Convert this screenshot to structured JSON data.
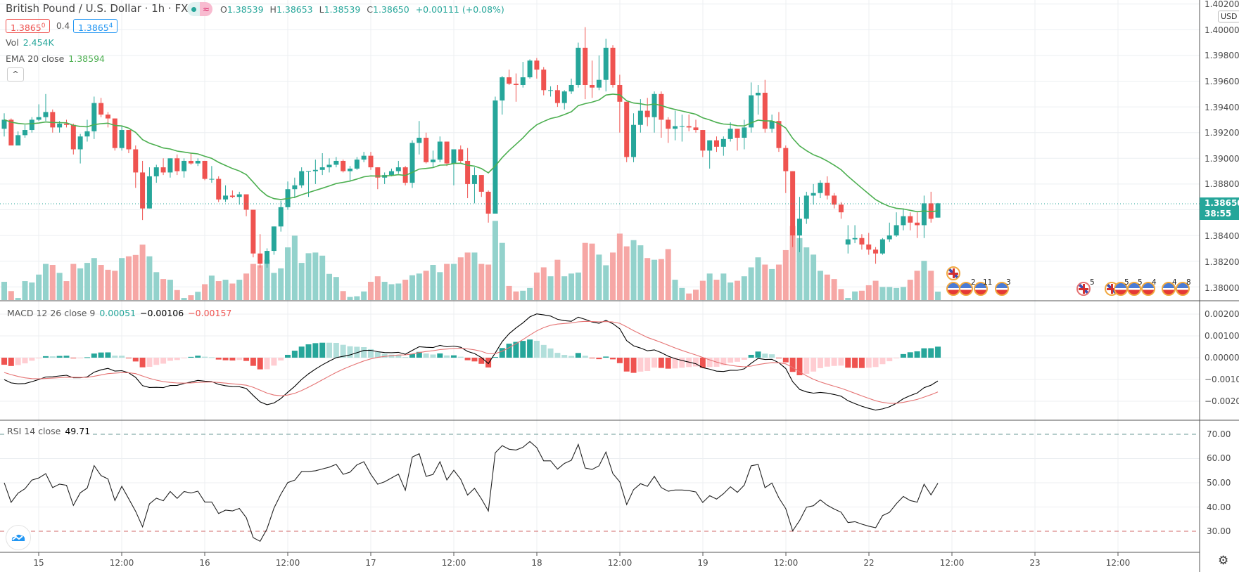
{
  "header": {
    "title": "British Pound / U.S. Dollar · 1h · FXCM",
    "signal_icon": "≈",
    "ohlc": {
      "o_label": "O",
      "o": "1.38539",
      "h_label": "H",
      "h": "1.38653",
      "l_label": "L",
      "l": "1.38539",
      "c_label": "C",
      "c": "1.38650",
      "change": "+0.00111 (+0.08%)"
    },
    "bid_main": "1.3865",
    "bid_pip": "0",
    "spread": "0.4",
    "ask_main": "1.3865",
    "ask_pip": "4"
  },
  "legend": {
    "vol_label": "Vol",
    "vol_value": "2.454K",
    "ema_label": "EMA 20 close",
    "ema_value": "1.38594",
    "collapse_icon": "^"
  },
  "macd_legend": {
    "label": "MACD 12 26 close 9",
    "hist": "0.00051",
    "macd": "−0.00106",
    "signal": "−0.00157"
  },
  "rsi_legend": {
    "label": "RSI 14 close",
    "value": "49.71"
  },
  "price_axis": {
    "currency": "USD",
    "ticks": [
      "1.40200",
      "1.40000",
      "1.39800",
      "1.39600",
      "1.39400",
      "1.39200",
      "1.39000",
      "1.38800",
      "1.38600",
      "1.38400",
      "1.38200",
      "1.38000"
    ],
    "last_price": "1.38650",
    "countdown": "38:55"
  },
  "macd_axis": {
    "ticks": [
      "0.00200",
      "0.00100",
      "0.00000",
      "−0.00100",
      "−0.00200"
    ]
  },
  "rsi_axis": {
    "ticks": [
      "70.00",
      "60.00",
      "50.00",
      "40.00",
      "30.00"
    ]
  },
  "time_axis": {
    "ticks": [
      "15",
      "12:00",
      "16",
      "12:00",
      "17",
      "12:00",
      "18",
      "12:00",
      "19",
      "12:00",
      "22",
      "12:00",
      "23",
      "12:00"
    ]
  },
  "events": [
    {
      "flag": "uk",
      "count": ""
    },
    {
      "flag": "us",
      "count": ""
    },
    {
      "flag": "us",
      "count": "2"
    },
    {
      "flag": "us",
      "count": "11"
    },
    {
      "flag": "us",
      "count": "3"
    },
    {
      "flag": "uk",
      "count": "5"
    },
    {
      "flag": "uk",
      "count": ""
    },
    {
      "flag": "us",
      "count": "5"
    },
    {
      "flag": "us",
      "count": "5"
    },
    {
      "flag": "us",
      "count": "4"
    },
    {
      "flag": "us",
      "count": "4"
    },
    {
      "flag": "us",
      "count": "8"
    }
  ],
  "colors": {
    "up": "#26a69a",
    "down": "#ef5350",
    "up_vol": "#93d2cc",
    "down_vol": "#f6a7a5",
    "ema": "#4caf50",
    "macd": "#000000",
    "signal": "#e57373",
    "hist_up_strong": "#26a69a",
    "hist_up_weak": "#b2dfdb",
    "hist_down_strong": "#ef5350",
    "hist_down_weak": "#ffcdd2"
  },
  "chart_data": {
    "type": "candlestick",
    "symbol": "GBPUSD",
    "interval": "1h",
    "price_range": [
      1.3795,
      1.4024
    ],
    "indicators": [
      "Volume",
      "EMA 20 close",
      "MACD 12 26 close 9",
      "RSI 14 close"
    ],
    "rsi_levels": [
      70,
      30
    ],
    "candles_ohlc": [
      [
        1.3923,
        1.3935,
        1.3917,
        1.393
      ],
      [
        1.393,
        1.3931,
        1.391,
        1.391
      ],
      [
        1.391,
        1.3921,
        1.391,
        1.3918
      ],
      [
        1.3918,
        1.3926,
        1.3916,
        1.3922
      ],
      [
        1.3922,
        1.3932,
        1.392,
        1.393
      ],
      [
        1.393,
        1.3942,
        1.3929,
        1.3932
      ],
      [
        1.3932,
        1.395,
        1.3929,
        1.3936
      ],
      [
        1.3936,
        1.3938,
        1.392,
        1.3924
      ],
      [
        1.3924,
        1.3929,
        1.392,
        1.3927
      ],
      [
        1.3927,
        1.393,
        1.3924,
        1.3926
      ],
      [
        1.3926,
        1.3927,
        1.3903,
        1.3907
      ],
      [
        1.3907,
        1.3919,
        1.3896,
        1.3917
      ],
      [
        1.3917,
        1.393,
        1.3913,
        1.3921
      ],
      [
        1.3921,
        1.3948,
        1.3915,
        1.3943
      ],
      [
        1.3943,
        1.3947,
        1.3932,
        1.3934
      ],
      [
        1.3934,
        1.3936,
        1.3924,
        1.3931
      ],
      [
        1.3931,
        1.3931,
        1.3906,
        1.3908
      ],
      [
        1.3908,
        1.3925,
        1.3906,
        1.3922
      ],
      [
        1.3922,
        1.3922,
        1.3904,
        1.3907
      ],
      [
        1.3907,
        1.391,
        1.3877,
        1.3889
      ],
      [
        1.3889,
        1.3898,
        1.3852,
        1.3861
      ],
      [
        1.3861,
        1.3893,
        1.3861,
        1.3886
      ],
      [
        1.3886,
        1.3895,
        1.3881,
        1.3893
      ],
      [
        1.3893,
        1.39,
        1.3887,
        1.3889
      ],
      [
        1.3889,
        1.39,
        1.3885,
        1.39
      ],
      [
        1.39,
        1.3903,
        1.3887,
        1.389
      ],
      [
        1.389,
        1.39,
        1.3885,
        1.3898
      ],
      [
        1.3898,
        1.3904,
        1.3895,
        1.3896
      ],
      [
        1.3896,
        1.39,
        1.3894,
        1.3898
      ],
      [
        1.3898,
        1.3898,
        1.3883,
        1.3884
      ],
      [
        1.3884,
        1.3894,
        1.3881,
        1.3884
      ],
      [
        1.3884,
        1.3886,
        1.3866,
        1.3868
      ],
      [
        1.3868,
        1.3879,
        1.3866,
        1.3871
      ],
      [
        1.3871,
        1.3875,
        1.3869,
        1.387
      ],
      [
        1.387,
        1.3874,
        1.3864,
        1.3872
      ],
      [
        1.3872,
        1.3872,
        1.3855,
        1.386
      ],
      [
        1.386,
        1.386,
        1.3823,
        1.3826
      ],
      [
        1.3826,
        1.3841,
        1.3815,
        1.3818
      ],
      [
        1.3818,
        1.383,
        1.3815,
        1.3828
      ],
      [
        1.3828,
        1.3847,
        1.3825,
        1.3847
      ],
      [
        1.3847,
        1.3867,
        1.3843,
        1.3862
      ],
      [
        1.3862,
        1.3882,
        1.386,
        1.3876
      ],
      [
        1.3876,
        1.3885,
        1.3869,
        1.3879
      ],
      [
        1.3879,
        1.3893,
        1.3877,
        1.389
      ],
      [
        1.389,
        1.389,
        1.387,
        1.389
      ],
      [
        1.389,
        1.3899,
        1.388,
        1.3891
      ],
      [
        1.3891,
        1.3904,
        1.3887,
        1.3893
      ],
      [
        1.3893,
        1.39,
        1.3889,
        1.3895
      ],
      [
        1.3895,
        1.3901,
        1.3893,
        1.3898
      ],
      [
        1.3898,
        1.3899,
        1.3889,
        1.389
      ],
      [
        1.389,
        1.3894,
        1.3882,
        1.3892
      ],
      [
        1.3892,
        1.3901,
        1.3891,
        1.3899
      ],
      [
        1.3899,
        1.3905,
        1.3897,
        1.3902
      ],
      [
        1.3902,
        1.3905,
        1.3891,
        1.3893
      ],
      [
        1.3893,
        1.3893,
        1.3876,
        1.3885
      ],
      [
        1.3885,
        1.3889,
        1.388,
        1.3887
      ],
      [
        1.3887,
        1.3892,
        1.3886,
        1.389
      ],
      [
        1.389,
        1.3898,
        1.3888,
        1.3893
      ],
      [
        1.3893,
        1.3894,
        1.3879,
        1.3881
      ],
      [
        1.3881,
        1.3914,
        1.3877,
        1.3912
      ],
      [
        1.3912,
        1.3929,
        1.3903,
        1.3916
      ],
      [
        1.3916,
        1.392,
        1.3896,
        1.3897
      ],
      [
        1.3897,
        1.3906,
        1.3893,
        1.3899
      ],
      [
        1.3899,
        1.3917,
        1.3897,
        1.3913
      ],
      [
        1.3913,
        1.3913,
        1.3894,
        1.3896
      ],
      [
        1.3896,
        1.3907,
        1.3879,
        1.3907
      ],
      [
        1.3907,
        1.391,
        1.3896,
        1.3898
      ],
      [
        1.3898,
        1.3908,
        1.3869,
        1.388
      ],
      [
        1.388,
        1.3893,
        1.3865,
        1.3887
      ],
      [
        1.3887,
        1.3887,
        1.387,
        1.3874
      ],
      [
        1.3874,
        1.3875,
        1.385,
        1.3857
      ],
      [
        1.3857,
        1.3948,
        1.3857,
        1.3945
      ],
      [
        1.3945,
        1.3964,
        1.3934,
        1.3963
      ],
      [
        1.3963,
        1.3969,
        1.3957,
        1.3958
      ],
      [
        1.3958,
        1.3966,
        1.3944,
        1.3957
      ],
      [
        1.3957,
        1.3975,
        1.3955,
        1.3963
      ],
      [
        1.3963,
        1.3977,
        1.3962,
        1.3976
      ],
      [
        1.3976,
        1.3978,
        1.3962,
        1.3969
      ],
      [
        1.3969,
        1.3971,
        1.3949,
        1.3953
      ],
      [
        1.3953,
        1.3956,
        1.3948,
        1.3953
      ],
      [
        1.3953,
        1.3957,
        1.394,
        1.3943
      ],
      [
        1.3943,
        1.3953,
        1.3938,
        1.3952
      ],
      [
        1.3952,
        1.3962,
        1.395,
        1.3957
      ],
      [
        1.3957,
        1.399,
        1.3955,
        1.3986
      ],
      [
        1.3986,
        1.4002,
        1.3946,
        1.3957
      ],
      [
        1.3957,
        1.3976,
        1.3947,
        1.3955
      ],
      [
        1.3955,
        1.398,
        1.3953,
        1.3961
      ],
      [
        1.3961,
        1.3993,
        1.3952,
        1.3986
      ],
      [
        1.3986,
        1.3988,
        1.3955,
        1.3957
      ],
      [
        1.3957,
        1.3965,
        1.392,
        1.3944
      ],
      [
        1.3944,
        1.3944,
        1.3897,
        1.3901
      ],
      [
        1.3901,
        1.3935,
        1.3897,
        1.3926
      ],
      [
        1.3926,
        1.3946,
        1.392,
        1.3937
      ],
      [
        1.3937,
        1.3947,
        1.3925,
        1.3932
      ],
      [
        1.3932,
        1.3952,
        1.392,
        1.395
      ],
      [
        1.395,
        1.3952,
        1.3916,
        1.393
      ],
      [
        1.393,
        1.3932,
        1.3912,
        1.3923
      ],
      [
        1.3923,
        1.3937,
        1.3914,
        1.3925
      ],
      [
        1.3925,
        1.3934,
        1.3913,
        1.3925
      ],
      [
        1.3925,
        1.3934,
        1.3921,
        1.3924
      ],
      [
        1.3924,
        1.393,
        1.392,
        1.3922
      ],
      [
        1.3922,
        1.3922,
        1.3901,
        1.3906
      ],
      [
        1.3906,
        1.3914,
        1.3892,
        1.3914
      ],
      [
        1.3914,
        1.3917,
        1.3905,
        1.3909
      ],
      [
        1.3909,
        1.3917,
        1.3902,
        1.3915
      ],
      [
        1.3915,
        1.3928,
        1.3913,
        1.3923
      ],
      [
        1.3923,
        1.3923,
        1.3906,
        1.3916
      ],
      [
        1.3916,
        1.393,
        1.3907,
        1.3924
      ],
      [
        1.3924,
        1.3959,
        1.392,
        1.3949
      ],
      [
        1.3949,
        1.3957,
        1.3934,
        1.3951
      ],
      [
        1.3951,
        1.3961,
        1.392,
        1.3923
      ],
      [
        1.3923,
        1.3934,
        1.392,
        1.3929
      ],
      [
        1.3929,
        1.3936,
        1.3905,
        1.3908
      ],
      [
        1.3908,
        1.391,
        1.3873,
        1.389
      ],
      [
        1.389,
        1.389,
        1.3831,
        1.384
      ],
      [
        1.384,
        1.387,
        1.3827,
        1.3853
      ],
      [
        1.3853,
        1.3874,
        1.3849,
        1.3871
      ],
      [
        1.3871,
        1.388,
        1.3864,
        1.3873
      ],
      [
        1.3873,
        1.3883,
        1.3869,
        1.3881
      ],
      [
        1.3881,
        1.3886,
        1.3868,
        1.3871
      ],
      [
        1.3871,
        1.3873,
        1.3861,
        1.3864
      ],
      [
        1.3864,
        1.3866,
        1.3853,
        1.3858
      ],
      [
        1.3833,
        1.3848,
        1.3826,
        1.3837
      ],
      [
        1.3837,
        1.3848,
        1.3834,
        1.3838
      ],
      [
        1.3838,
        1.3841,
        1.3829,
        1.3833
      ],
      [
        1.3833,
        1.3842,
        1.3825,
        1.3829
      ],
      [
        1.3829,
        1.3831,
        1.3818,
        1.3826
      ],
      [
        1.3826,
        1.3838,
        1.3825,
        1.3837
      ],
      [
        1.3837,
        1.385,
        1.3835,
        1.384
      ],
      [
        1.384,
        1.3858,
        1.3839,
        1.3848
      ],
      [
        1.3848,
        1.3861,
        1.3844,
        1.3855
      ],
      [
        1.3855,
        1.3858,
        1.3844,
        1.385
      ],
      [
        1.385,
        1.3858,
        1.3838,
        1.3848
      ],
      [
        1.3848,
        1.3871,
        1.3838,
        1.3865
      ],
      [
        1.3865,
        1.3874,
        1.385,
        1.3853
      ],
      [
        1.38539,
        1.38653,
        1.38539,
        1.3865
      ]
    ],
    "volume_k": [
      5.3,
      2.6,
      0.6,
      5.5,
      5.1,
      7.4,
      10.5,
      10.2,
      7.9,
      5.5,
      10.5,
      9.2,
      10.8,
      12.2,
      10.2,
      8.8,
      8.5,
      12.2,
      12.7,
      13.1,
      16.1,
      12.7,
      8.1,
      6.1,
      5.9,
      2.9,
      0.6,
      1.4,
      2.4,
      4.6,
      7.1,
      5.5,
      5.9,
      4.8,
      5.9,
      7.7,
      10.5,
      10.1,
      11.7,
      7.9,
      9.2,
      15.3,
      18.7,
      10.8,
      13.6,
      13.8,
      12.9,
      7.6,
      6.7,
      2.6,
      0.9,
      1.1,
      2.5,
      5.3,
      6.9,
      5.3,
      4.6,
      4.8,
      5.9,
      7.2,
      7.7,
      8.5,
      10.2,
      8.1,
      10.5,
      10.5,
      12.4,
      13.8,
      13.8,
      10.5,
      10.3,
      23.0,
      16.6,
      4.1,
      2.5,
      2.7,
      3.5,
      8.0,
      9.5,
      6.9,
      11.7,
      6.9,
      7.7,
      8.0,
      16.6,
      16.4,
      13.2,
      10.1,
      13.8,
      19.3,
      15.6,
      17.4,
      15.9,
      12.2,
      11.7,
      11.9,
      14.8,
      5.9,
      3.5,
      1.9,
      3.0,
      5.6,
      7.7,
      5.9,
      7.7,
      5.1,
      5.6,
      6.9,
      9.5,
      12.4,
      10.3,
      9.0,
      10.3,
      14.5,
      21.5,
      18.0,
      15.3,
      13.2,
      8.5,
      7.4,
      6.1,
      3.2,
      0.6,
      2.5,
      2.7,
      4.3,
      5.6,
      3.8,
      3.8,
      3.5,
      3.8,
      5.9,
      8.5,
      11.4,
      8.5,
      2.454
    ]
  }
}
